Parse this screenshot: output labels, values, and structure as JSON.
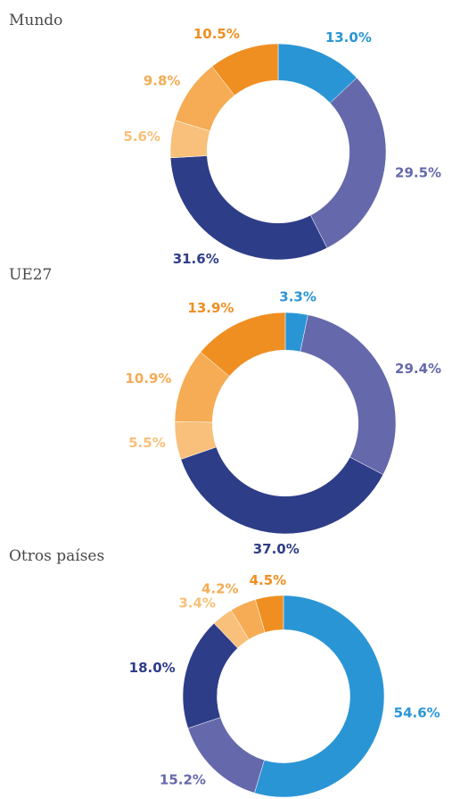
{
  "chart_data": [
    {
      "type": "donut",
      "title": "Mundo",
      "values": [
        13.0,
        29.5,
        31.6,
        5.6,
        9.8,
        10.5
      ],
      "value_labels": [
        "13.0%",
        "29.5%",
        "31.6%",
        "5.6%",
        "9.8%",
        "10.5%"
      ],
      "colors": [
        "#2a95d5",
        "#6569ab",
        "#2e3d88",
        "#f8c07a",
        "#f5ac55",
        "#ef8f22"
      ]
    },
    {
      "type": "donut",
      "title": "UE27",
      "values": [
        3.3,
        29.4,
        37.0,
        5.5,
        10.9,
        13.9
      ],
      "value_labels": [
        "3.3%",
        "29.4%",
        "37.0%",
        "5.5%",
        "10.9%",
        "13.9%"
      ],
      "colors": [
        "#2a95d5",
        "#6569ab",
        "#2e3d88",
        "#f8c07a",
        "#f5ac55",
        "#ef8f22"
      ]
    },
    {
      "type": "donut",
      "title": "Otros países",
      "values": [
        54.6,
        15.2,
        18.0,
        3.4,
        4.2,
        4.5
      ],
      "value_labels": [
        "54.6%",
        "15.2%",
        "18.0%",
        "3.4%",
        "4.2%",
        "4.5%"
      ],
      "colors": [
        "#2a95d5",
        "#6569ab",
        "#2e3d88",
        "#f8c07a",
        "#f5ac55",
        "#ef8f22"
      ]
    }
  ]
}
